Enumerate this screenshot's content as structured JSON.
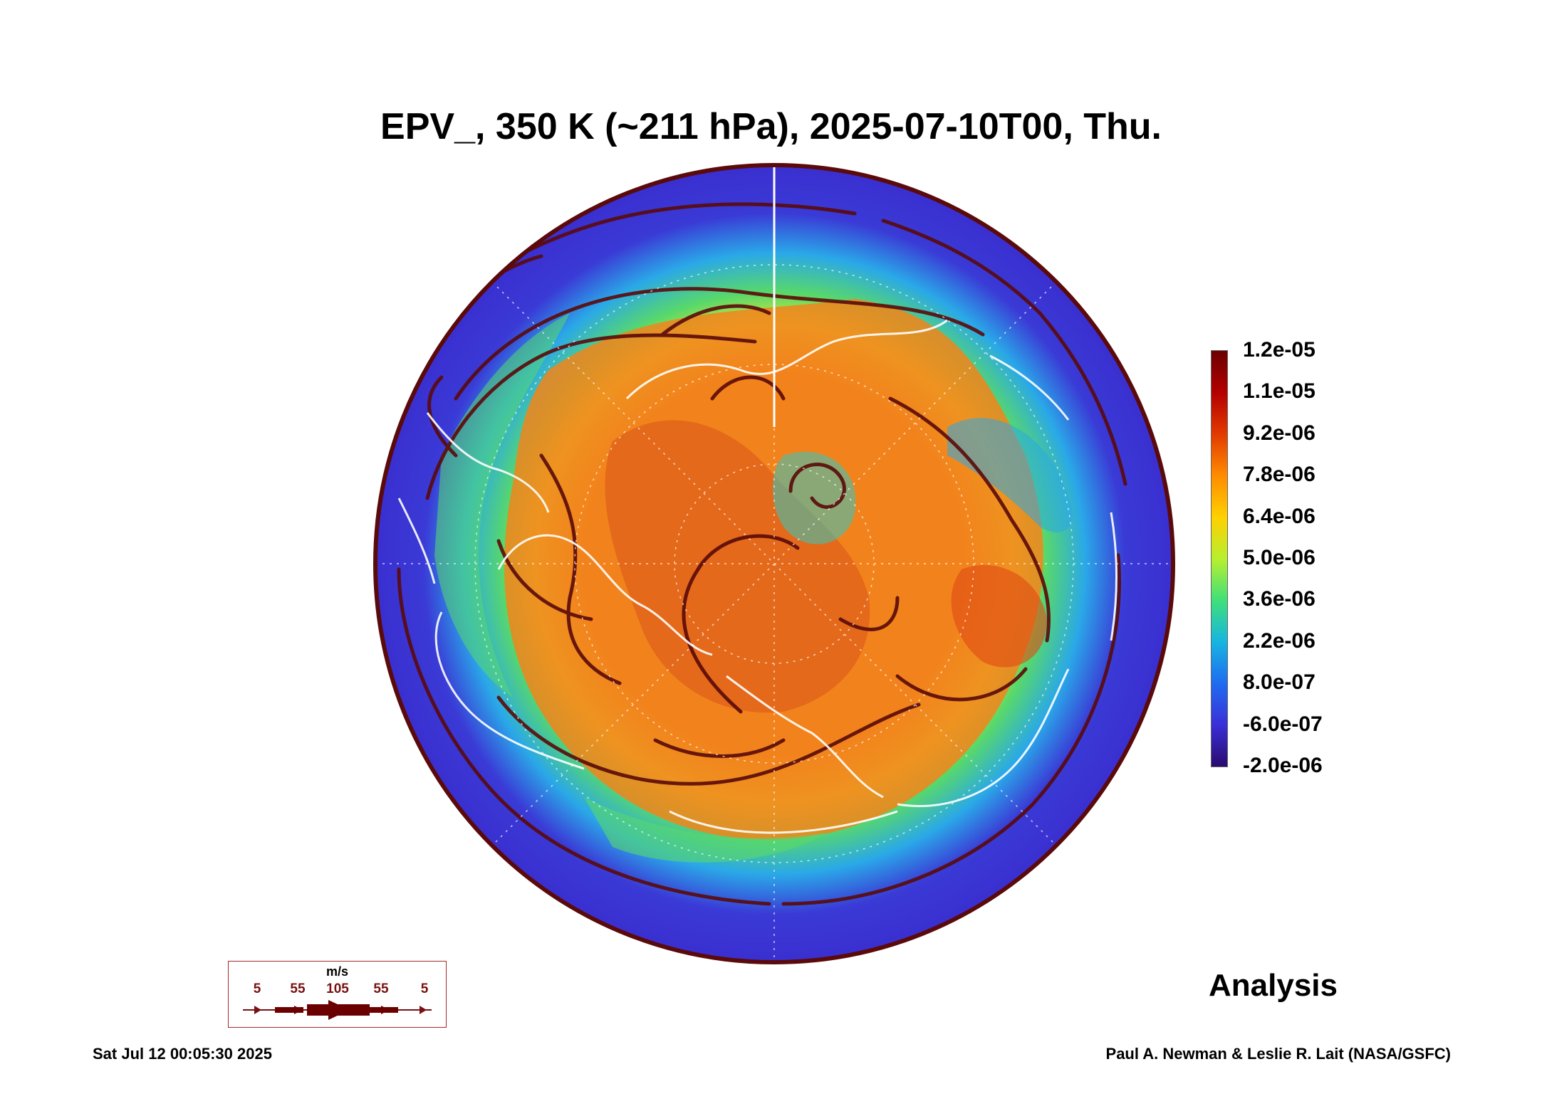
{
  "title": "EPV_, 350 K (~211 hPa), 2025-07-10T00, Thu.",
  "colorbar": {
    "labels": [
      "1.2e-05",
      "1.1e-05",
      "9.2e-06",
      "7.8e-06",
      "6.4e-06",
      "5.0e-06",
      "3.6e-06",
      "2.2e-06",
      "8.0e-07",
      "-6.0e-07",
      "-2.0e-06"
    ],
    "colors": [
      "#6b0000",
      "#b40000",
      "#e23a00",
      "#ff8c00",
      "#ffd000",
      "#b8ef2e",
      "#3fe07a",
      "#17b5e0",
      "#1f6cf0",
      "#3a2fd8",
      "#2a0a6e"
    ]
  },
  "map_colors": {
    "outer": "#3a3ad6",
    "cyan_band": "#2aa8e8",
    "green_band": "#58d86a",
    "yellow_band": "#d7e63a",
    "core": "#f2841c",
    "core_dark": "#d9541a",
    "streamline": "#5a0a0a",
    "coastline": "#ffffff"
  },
  "wind_legend": {
    "unit": "m/s",
    "ticks": [
      "5",
      "55",
      "105",
      "55",
      "5"
    ]
  },
  "analysis_label": "Analysis",
  "timestamp": "Sat Jul 12 00:05:30 2025",
  "credit": "Paul A. Newman & Leslie R. Lait (NASA/GSFC)"
}
